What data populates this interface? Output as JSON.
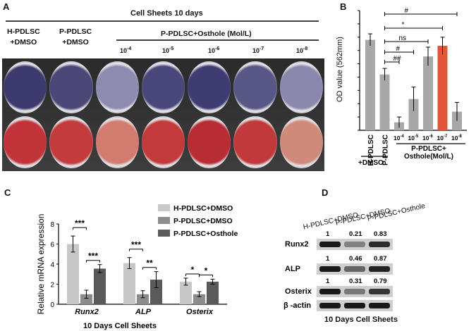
{
  "panelA": {
    "letter": "A",
    "header": "Cell Sheets 10 days",
    "groups": [
      {
        "line1": "H-PDLSC",
        "line2": "+DMSO"
      },
      {
        "line1": "P-PDLSC",
        "line2": "+DMSO"
      }
    ],
    "treatment_label": "P-PDLSC+Osthole (Mol/L)",
    "concentrations": [
      "10-4",
      "10-5",
      "10-6",
      "10-7",
      "10-8"
    ],
    "well_colors_top": [
      "#3d3a6e",
      "#4b4878",
      "#8d8bb0",
      "#4a477a",
      "#3f3c72",
      "#595785",
      "#8a88ad"
    ],
    "well_colors_bottom": [
      "#c0343a",
      "#c23c3e",
      "#d27c70",
      "#c33a3a",
      "#b82d33",
      "#c0393b",
      "#d08a7a"
    ]
  },
  "panelB": {
    "letter": "B",
    "chart_data": {
      "type": "bar",
      "ylabel": "OD value (562mm)",
      "ylim": [
        0,
        1.8
      ],
      "yticks": [
        0,
        0.2,
        0.4,
        0.6,
        0.8,
        1.0,
        1.2,
        1.4,
        1.6,
        1.8
      ],
      "categories": [
        "H-PDLSC",
        "P-PDLSC",
        "10-4",
        "10-5",
        "10-6",
        "10-7",
        "10-8"
      ],
      "values": [
        1.36,
        0.84,
        0.12,
        0.47,
        1.11,
        1.27,
        0.28
      ],
      "errors": [
        0.09,
        0.09,
        0.08,
        0.18,
        0.14,
        0.13,
        0.14
      ],
      "colors": [
        "#a8a8a8",
        "#a8a8a8",
        "#a8a8a8",
        "#a8a8a8",
        "#a8a8a8",
        "#e2563a",
        "#a8a8a8"
      ],
      "group_labels": {
        "dmso": "+DMSO",
        "osthole_line1": "P-PDLSC+",
        "osthole_line2": "Osthole(Mol/L)"
      },
      "significance": [
        {
          "from": 1,
          "to": 6,
          "label": "#"
        },
        {
          "from": 1,
          "to": 5,
          "label": "*"
        },
        {
          "from": 1,
          "to": 4,
          "label": "ns"
        },
        {
          "from": 1,
          "to": 3,
          "label": "#"
        },
        {
          "from": 1,
          "to": 2,
          "label": "##"
        }
      ]
    }
  },
  "panelC": {
    "letter": "C",
    "chart_data": {
      "type": "bar",
      "ylabel": "Relative mRNA expression",
      "xlabel": "10 Days Cell Sheets",
      "ylim": [
        0,
        8
      ],
      "yticks": [
        0,
        2,
        4,
        6,
        8
      ],
      "categories": [
        "Runx2",
        "ALP",
        "Osterix"
      ],
      "series": [
        {
          "name": "H-PDLSC+DMSO",
          "color": "#c8c8c8",
          "values": [
            6.0,
            4.1,
            2.25
          ],
          "errors": [
            0.8,
            0.55,
            0.35
          ]
        },
        {
          "name": "P-PDLSC+DMSO",
          "color": "#8c8c8c",
          "values": [
            1.0,
            1.0,
            1.0
          ],
          "errors": [
            0.4,
            0.35,
            0.25
          ]
        },
        {
          "name": "P-PDLSC+Osthole",
          "color": "#5a5a5a",
          "values": [
            3.55,
            2.45,
            2.25
          ],
          "errors": [
            0.4,
            0.8,
            0.25
          ]
        }
      ],
      "significance": [
        {
          "category": 0,
          "from": 0,
          "to": 1,
          "label": "***"
        },
        {
          "category": 0,
          "from": 1,
          "to": 2,
          "label": "***"
        },
        {
          "category": 1,
          "from": 0,
          "to": 1,
          "label": "***"
        },
        {
          "category": 1,
          "from": 1,
          "to": 2,
          "label": "**"
        },
        {
          "category": 2,
          "from": 0,
          "to": 1,
          "label": "*"
        },
        {
          "category": 2,
          "from": 1,
          "to": 2,
          "label": "*"
        }
      ]
    }
  },
  "panelD": {
    "letter": "D",
    "columns": [
      "H-PDLSC+DMSO",
      "P-PDLSC+DMSO",
      "P-PDLSC+Osthole"
    ],
    "rows": [
      {
        "label": "Runx2",
        "values": [
          "1",
          "0.21",
          "0.83"
        ],
        "intensity": [
          1.0,
          0.45,
          0.9
        ]
      },
      {
        "label": "ALP",
        "values": [
          "1",
          "0.46",
          "0.87"
        ],
        "intensity": [
          1.0,
          0.6,
          0.95
        ]
      },
      {
        "label": "Osterix",
        "values": [
          "1",
          "0.31",
          "0.79"
        ],
        "intensity": [
          1.0,
          0.5,
          0.85
        ]
      },
      {
        "label": "β -actin",
        "values": [],
        "intensity": [
          1.0,
          1.0,
          1.0
        ]
      }
    ],
    "caption": "10 Days Cell Sheets"
  }
}
